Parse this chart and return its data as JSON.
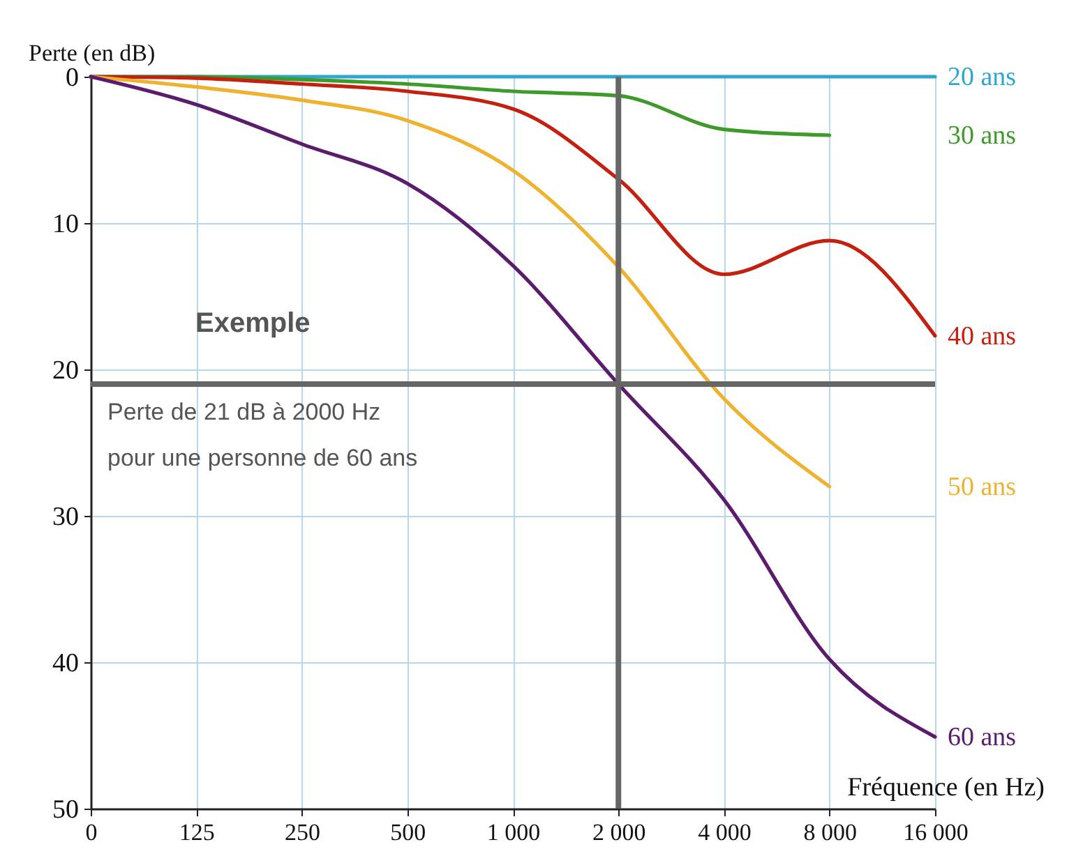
{
  "chart_data": {
    "type": "line",
    "xlabel": "Fréquence (en Hz)",
    "ylabel": "Perte (en dB)",
    "categories": [
      "0",
      "125",
      "250",
      "500",
      "1 000",
      "2 000",
      "4 000",
      "8 000",
      "16 000"
    ],
    "ylim": [
      50,
      0
    ],
    "yticks": [
      0,
      10,
      20,
      30,
      40,
      50
    ],
    "grid": true,
    "legend": false,
    "marker": "none",
    "line_style": "solid",
    "series": [
      {
        "name": "20 ans",
        "color": "#2ea6cf",
        "values": [
          0,
          0,
          0,
          0,
          0,
          0,
          0,
          0,
          0
        ]
      },
      {
        "name": "30 ans",
        "color": "#3d9a2b",
        "values": [
          0,
          0,
          0.2,
          0.5,
          1.0,
          1.3,
          3.6,
          4,
          null
        ]
      },
      {
        "name": "40 ans",
        "color": "#c4200f",
        "values": [
          0,
          0.1,
          0.5,
          1,
          2.2,
          7,
          13.5,
          11.2,
          17.7
        ]
      },
      {
        "name": "50 ans",
        "color": "#eeb22e",
        "values": [
          0,
          0.7,
          1.6,
          3,
          6.4,
          13,
          22,
          28,
          null
        ]
      },
      {
        "name": "60 ans",
        "color": "#5b1c6e",
        "values": [
          0,
          1.9,
          4.6,
          7.3,
          12.9,
          21,
          28.9,
          39.8,
          45.1
        ]
      }
    ],
    "ref_lines": [
      {
        "axis": "x",
        "value": "2 000",
        "color": "#666666"
      },
      {
        "axis": "y",
        "value": 21,
        "color": "#666666"
      }
    ],
    "annotations": [
      "Exemple",
      "Perte de 21 dB à 2000 Hz\npour une personne de 60 ans"
    ]
  }
}
